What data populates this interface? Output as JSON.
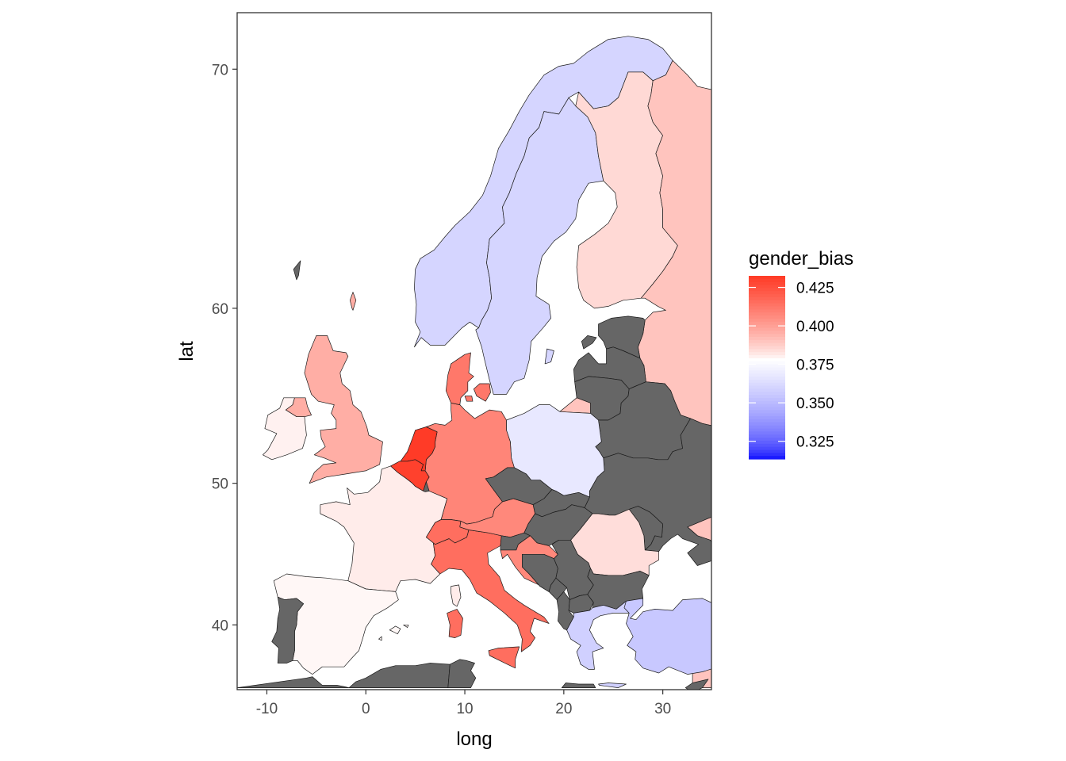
{
  "chart_data": {
    "type": "choropleth",
    "xlabel": "long",
    "ylabel": "lat",
    "xlim": [
      -13,
      35
    ],
    "ylim": [
      35,
      72
    ],
    "x_ticks": [
      -10,
      0,
      10,
      20,
      30
    ],
    "y_ticks": [
      40,
      50,
      60,
      70
    ],
    "x_tick_labels": [
      "-10",
      "0",
      "10",
      "20",
      "30"
    ],
    "y_tick_labels": [
      "40",
      "50",
      "60",
      "70"
    ],
    "grid": true,
    "legend": {
      "title": "gender_bias",
      "position": "right",
      "range": [
        0.3135,
        0.4325
      ],
      "ticks": [
        0.325,
        0.35,
        0.375,
        0.4,
        0.425
      ],
      "labels": [
        "0.325",
        "0.350",
        "0.375",
        "0.400",
        "0.425"
      ],
      "colors": {
        "low": "#0000FF",
        "mid": "#FFFFFF",
        "high": "#FF3A25"
      },
      "midpoint": 0.378
    },
    "na_color": "#666666",
    "regions": [
      {
        "name": "Norway",
        "value": 0.36
      },
      {
        "name": "Sweden",
        "value": 0.36
      },
      {
        "name": "Finland",
        "value": 0.385
      },
      {
        "name": "Russia",
        "value": 0.39
      },
      {
        "name": "Iceland",
        "value": null
      },
      {
        "name": "Estonia",
        "value": null
      },
      {
        "name": "Latvia",
        "value": null
      },
      {
        "name": "Lithuania",
        "value": null
      },
      {
        "name": "Belarus",
        "value": null
      },
      {
        "name": "Ukraine",
        "value": null
      },
      {
        "name": "Moldova",
        "value": null
      },
      {
        "name": "Kaliningrad",
        "value": 0.39
      },
      {
        "name": "Poland",
        "value": 0.368
      },
      {
        "name": "Germany",
        "value": 0.408
      },
      {
        "name": "Denmark",
        "value": 0.412
      },
      {
        "name": "Netherlands",
        "value": 0.432
      },
      {
        "name": "Belgium",
        "value": 0.43
      },
      {
        "name": "Luxembourg",
        "value": null
      },
      {
        "name": "France",
        "value": 0.381
      },
      {
        "name": "Spain",
        "value": 0.379
      },
      {
        "name": "Portugal",
        "value": null
      },
      {
        "name": "Italy",
        "value": 0.415
      },
      {
        "name": "Switzerland",
        "value": 0.415
      },
      {
        "name": "Austria",
        "value": 0.407
      },
      {
        "name": "Czech Republic",
        "value": null
      },
      {
        "name": "Slovakia",
        "value": null
      },
      {
        "name": "Hungary",
        "value": null
      },
      {
        "name": "Slovenia",
        "value": null
      },
      {
        "name": "Croatia",
        "value": 0.407
      },
      {
        "name": "Bosnia and Herzegovina",
        "value": null
      },
      {
        "name": "Serbia",
        "value": null
      },
      {
        "name": "Montenegro",
        "value": null
      },
      {
        "name": "Albania",
        "value": null
      },
      {
        "name": "North Macedonia",
        "value": null
      },
      {
        "name": "Romania",
        "value": 0.384
      },
      {
        "name": "Bulgaria",
        "value": null
      },
      {
        "name": "Greece",
        "value": 0.358
      },
      {
        "name": "Turkey",
        "value": 0.355
      },
      {
        "name": "United Kingdom",
        "value": 0.396
      },
      {
        "name": "Ireland",
        "value": 0.38
      },
      {
        "name": "Sardinia",
        "value": 0.415
      },
      {
        "name": "Corsica",
        "value": 0.381
      },
      {
        "name": "Balearic Islands",
        "value": 0.379
      },
      {
        "name": "Gotland",
        "value": 0.36
      },
      {
        "name": "Saaremaa",
        "value": null
      },
      {
        "name": "Faroe Islands",
        "value": null
      },
      {
        "name": "Shetland",
        "value": 0.396
      },
      {
        "name": "Cyprus",
        "value": null
      },
      {
        "name": "Morocco",
        "value": null
      },
      {
        "name": "Algeria",
        "value": null
      },
      {
        "name": "Tunisia",
        "value": null
      },
      {
        "name": "Libya",
        "value": null
      },
      {
        "name": "Crete",
        "value": 0.358
      }
    ]
  }
}
